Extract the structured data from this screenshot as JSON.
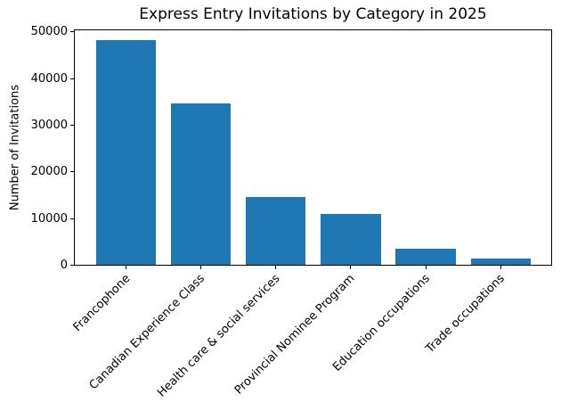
{
  "chart_data": {
    "type": "bar",
    "title": "Express Entry Invitations by Category in 2025",
    "xlabel": "",
    "ylabel": "Number of Invitations",
    "categories": [
      "Francophone",
      "Canadian Experience Class",
      "Health care & social services",
      "Provincial Nominee Program",
      "Education occupations",
      "Trade occupations"
    ],
    "values": [
      48000,
      34500,
      14500,
      10900,
      3500,
      1250
    ],
    "yticks": [
      0,
      10000,
      20000,
      30000,
      40000,
      50000
    ],
    "ylim": [
      0,
      50400
    ],
    "x_tick_rotation": 45,
    "grid": false,
    "legend": null,
    "bar_color": "#1f77b4",
    "text_color": "#000000",
    "background_color": "#ffffff"
  }
}
